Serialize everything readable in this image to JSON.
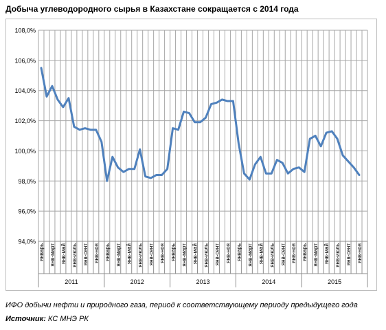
{
  "header": {
    "title": "Добыча углеводородного сырья в Казахстане сокращается с 2014 года"
  },
  "footer": {
    "caption": "ИФО добычи нефти и природного газа, период к соответствующему периоду предыдущего года",
    "source_label": "Источник:",
    "source_text": " КС МНЭ РК"
  },
  "colors": {
    "line": "#4f81bd",
    "grid": "#a6a6a6",
    "frame": "#bdbdbd"
  },
  "chart_data": {
    "type": "line",
    "title": "Добыча углеводородного сырья в Казахстане сокращается с 2014 года",
    "ylim": [
      94,
      108
    ],
    "ytick_step": 2,
    "ytick_format": "one decimal, comma separator, percent suffix",
    "grid": "vertical and horizontal",
    "legend": "none",
    "month_labels": [
      "январь",
      "",
      "янв-март",
      "",
      "янв-май",
      "",
      "янв-июль",
      "",
      "янв-сент",
      "",
      "янв-ноя",
      ""
    ],
    "years": [
      "2011",
      "2012",
      "2013",
      "2014",
      "2015"
    ],
    "series": [
      {
        "values": [
          105.5,
          103.6,
          104.3,
          103.4,
          102.9,
          103.5,
          101.6,
          101.4,
          101.5,
          101.4,
          101.4,
          100.6,
          98.0,
          99.6,
          98.9,
          98.6,
          98.8,
          98.8,
          100.1,
          98.3,
          98.2,
          98.4,
          98.4,
          98.8,
          101.5,
          101.4,
          102.6,
          102.5,
          101.9,
          101.9,
          102.2,
          103.1,
          103.2,
          103.4,
          103.3,
          103.3,
          100.5,
          98.5,
          98.1,
          99.1,
          99.6,
          98.5,
          98.5,
          99.4,
          99.2,
          98.5,
          98.8,
          98.9,
          98.6,
          100.8,
          101.0,
          100.3,
          101.2,
          101.3,
          100.8,
          99.7,
          99.3,
          98.9,
          98.4
        ]
      }
    ]
  }
}
